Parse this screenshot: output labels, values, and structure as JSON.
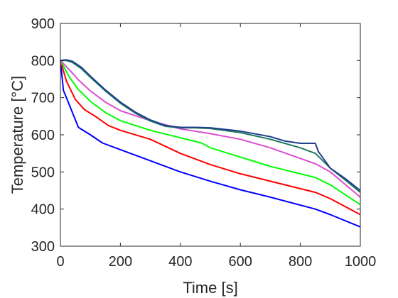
{
  "chart_data": {
    "type": "line",
    "title": "",
    "xlabel": "Time [s]",
    "ylabel": "Temperature [°C]",
    "xlim": [
      0,
      1000
    ],
    "ylim": [
      300,
      900
    ],
    "xticks": [
      0,
      200,
      400,
      600,
      800,
      1000
    ],
    "yticks": [
      300,
      400,
      500,
      600,
      700,
      800,
      900
    ],
    "grid": false,
    "legend": "none",
    "series": [
      {
        "color": "#0000ff",
        "points": [
          [
            0,
            800
          ],
          [
            10,
            720
          ],
          [
            30,
            680
          ],
          [
            60,
            620
          ],
          [
            100,
            600
          ],
          [
            140,
            578
          ],
          [
            200,
            560
          ],
          [
            300,
            530
          ],
          [
            400,
            500
          ],
          [
            500,
            475
          ],
          [
            600,
            452
          ],
          [
            700,
            432
          ],
          [
            850,
            400
          ],
          [
            900,
            385
          ],
          [
            1000,
            352
          ]
        ]
      },
      {
        "color": "#ff0000",
        "points": [
          [
            0,
            800
          ],
          [
            20,
            745
          ],
          [
            50,
            695
          ],
          [
            80,
            668
          ],
          [
            120,
            648
          ],
          [
            160,
            625
          ],
          [
            200,
            612
          ],
          [
            300,
            588
          ],
          [
            400,
            550
          ],
          [
            500,
            520
          ],
          [
            600,
            495
          ],
          [
            700,
            475
          ],
          [
            850,
            445
          ],
          [
            900,
            428
          ],
          [
            1000,
            385
          ]
        ]
      },
      {
        "color": "#00ff00",
        "points": [
          [
            0,
            800
          ],
          [
            30,
            755
          ],
          [
            60,
            722
          ],
          [
            100,
            690
          ],
          [
            150,
            660
          ],
          [
            200,
            638
          ],
          [
            300,
            612
          ],
          [
            400,
            592
          ],
          [
            470,
            578
          ],
          [
            500,
            565
          ],
          [
            600,
            540
          ],
          [
            700,
            515
          ],
          [
            850,
            485
          ],
          [
            900,
            465
          ],
          [
            1000,
            412
          ]
        ]
      },
      {
        "color": "#d94fd0",
        "points": [
          [
            0,
            800
          ],
          [
            30,
            775
          ],
          [
            60,
            748
          ],
          [
            100,
            718
          ],
          [
            150,
            688
          ],
          [
            200,
            665
          ],
          [
            300,
            638
          ],
          [
            400,
            616
          ],
          [
            500,
            603
          ],
          [
            600,
            588
          ],
          [
            700,
            565
          ],
          [
            850,
            522
          ],
          [
            900,
            500
          ],
          [
            1000,
            432
          ]
        ]
      },
      {
        "color": "#1f7a5c",
        "points": [
          [
            0,
            800
          ],
          [
            20,
            800
          ],
          [
            40,
            795
          ],
          [
            70,
            778
          ],
          [
            100,
            755
          ],
          [
            150,
            718
          ],
          [
            200,
            685
          ],
          [
            250,
            658
          ],
          [
            300,
            637
          ],
          [
            350,
            623
          ],
          [
            400,
            619
          ],
          [
            450,
            619
          ],
          [
            500,
            617
          ],
          [
            600,
            606
          ],
          [
            700,
            588
          ],
          [
            800,
            565
          ],
          [
            850,
            550
          ],
          [
            900,
            510
          ],
          [
            950,
            478
          ],
          [
            1000,
            445
          ]
        ]
      },
      {
        "color": "#1f3f8f",
        "points": [
          [
            0,
            800
          ],
          [
            20,
            802
          ],
          [
            40,
            798
          ],
          [
            70,
            782
          ],
          [
            100,
            758
          ],
          [
            150,
            721
          ],
          [
            200,
            688
          ],
          [
            250,
            661
          ],
          [
            300,
            640
          ],
          [
            350,
            625
          ],
          [
            400,
            620
          ],
          [
            450,
            620
          ],
          [
            500,
            619
          ],
          [
            600,
            610
          ],
          [
            700,
            595
          ],
          [
            750,
            583
          ],
          [
            800,
            577
          ],
          [
            850,
            577
          ],
          [
            860,
            555
          ],
          [
            900,
            510
          ],
          [
            950,
            482
          ],
          [
            1000,
            450
          ]
        ]
      }
    ]
  }
}
